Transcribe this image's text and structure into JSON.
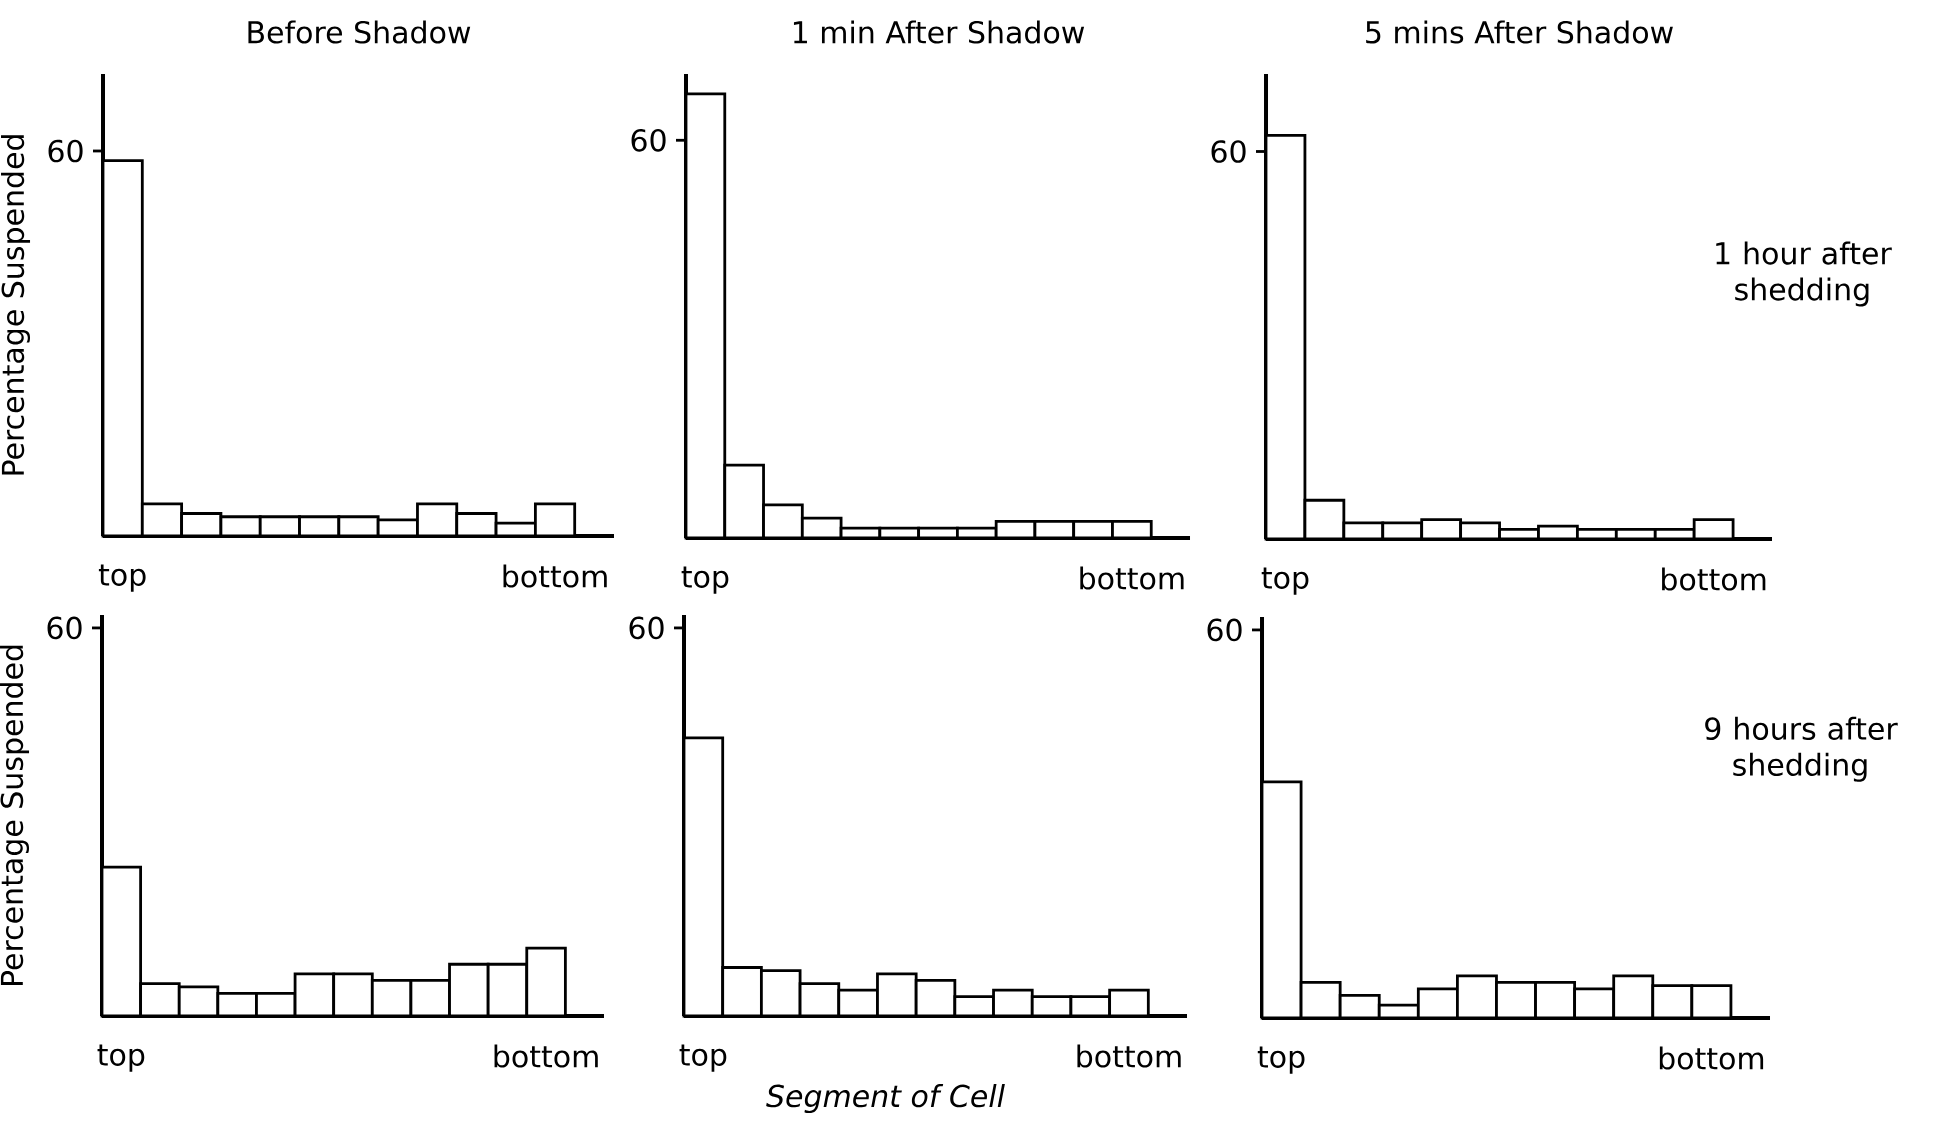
{
  "chart_data": [
    {
      "type": "bar",
      "title": "Before Shadow",
      "ylabel": "Percentage Suspended",
      "categories": [
        "top",
        null,
        null,
        null,
        null,
        null,
        null,
        null,
        null,
        null,
        null,
        "bottom"
      ],
      "values": [
        58.5,
        5,
        3.5,
        3,
        3,
        3,
        3,
        2.5,
        5,
        3.5,
        2,
        5
      ],
      "color": "#ffffff",
      "ylim": [
        0,
        72
      ],
      "yticks": [
        60
      ]
    },
    {
      "type": "bar",
      "title": "1 min After Shadow",
      "categories": [
        "top",
        null,
        null,
        null,
        null,
        null,
        null,
        null,
        null,
        null,
        null,
        "bottom"
      ],
      "values": [
        67,
        11,
        5,
        3,
        1.5,
        1.5,
        1.5,
        1.5,
        2.5,
        2.5,
        2.5,
        2.5
      ],
      "color": "#ffffff",
      "ylim": [
        0,
        70
      ],
      "yticks": [
        60
      ]
    },
    {
      "type": "bar",
      "title": "5 mins After Shadow",
      "annotations": [
        "1 hour after shedding"
      ],
      "categories": [
        "top",
        null,
        null,
        null,
        null,
        null,
        null,
        null,
        null,
        null,
        null,
        "bottom"
      ],
      "values": [
        62.5,
        6,
        2.5,
        2.5,
        3,
        2.5,
        1.5,
        2,
        1.5,
        1.5,
        1.5,
        3
      ],
      "color": "#ffffff",
      "ylim": [
        0,
        72
      ],
      "yticks": [
        60
      ]
    },
    {
      "type": "bar",
      "ylabel": "Percentage Suspended",
      "categories": [
        "top",
        null,
        null,
        null,
        null,
        null,
        null,
        null,
        null,
        null,
        null,
        "bottom"
      ],
      "values": [
        23,
        5,
        4.5,
        3.5,
        3.5,
        6.5,
        6.5,
        5.5,
        5.5,
        8,
        8,
        10.5
      ],
      "color": "#ffffff",
      "ylim": [
        0,
        62
      ],
      "yticks": [
        60
      ]
    },
    {
      "type": "bar",
      "xlabel": "Segment of Cell",
      "categories": [
        "top",
        null,
        null,
        null,
        null,
        null,
        null,
        null,
        null,
        null,
        null,
        "bottom"
      ],
      "values": [
        43,
        7.5,
        7,
        5,
        4,
        6.5,
        5.5,
        3,
        4,
        3,
        3,
        4
      ],
      "color": "#ffffff",
      "ylim": [
        0,
        62
      ],
      "yticks": [
        60
      ]
    },
    {
      "type": "bar",
      "annotations": [
        "9 hours after shedding"
      ],
      "categories": [
        "top",
        null,
        null,
        null,
        null,
        null,
        null,
        null,
        null,
        null,
        null,
        "bottom"
      ],
      "values": [
        36.5,
        5.5,
        3.5,
        2,
        4.5,
        6.5,
        5.5,
        5.5,
        4.5,
        6.5,
        5,
        5
      ],
      "color": "#ffffff",
      "ylim": [
        0,
        62
      ],
      "yticks": [
        60
      ]
    }
  ]
}
